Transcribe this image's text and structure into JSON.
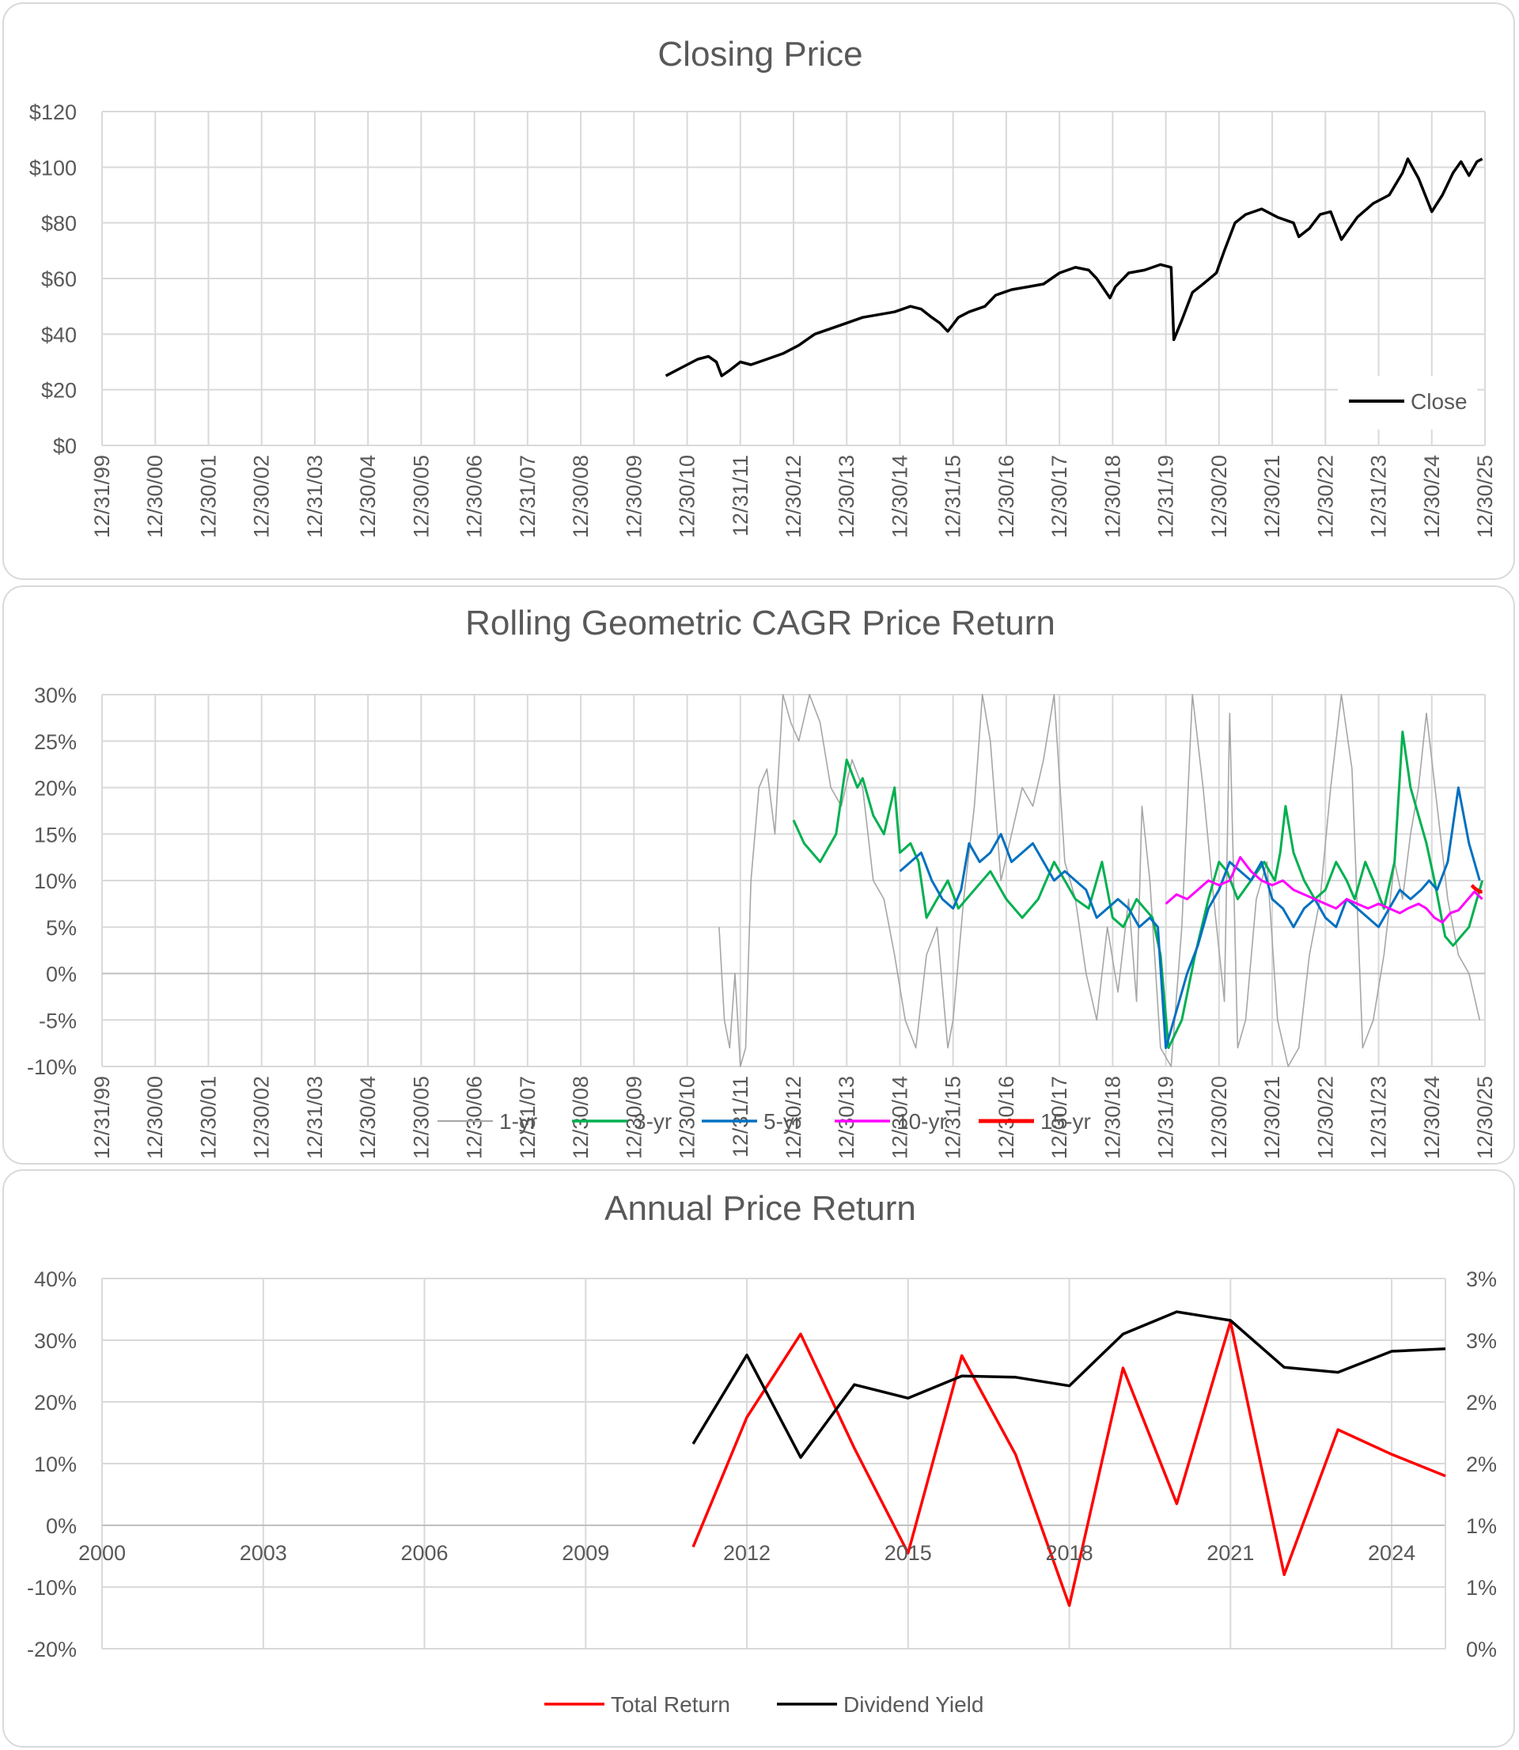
{
  "chart_data": [
    {
      "type": "line",
      "title": "Closing Price",
      "ylim": [
        0,
        120
      ],
      "y_ticks": [
        "$0",
        "$20",
        "$40",
        "$60",
        "$80",
        "$100",
        "$120"
      ],
      "x_ticks": [
        "12/31/99",
        "12/30/00",
        "12/30/01",
        "12/30/02",
        "12/31/03",
        "12/30/04",
        "12/30/05",
        "12/30/06",
        "12/31/07",
        "12/30/08",
        "12/30/09",
        "12/30/10",
        "12/31/11",
        "12/30/12",
        "12/30/13",
        "12/30/14",
        "12/31/15",
        "12/30/16",
        "12/30/17",
        "12/30/18",
        "12/31/19",
        "12/30/20",
        "12/30/21",
        "12/30/22",
        "12/31/23",
        "12/30/24",
        "12/30/25"
      ],
      "legend": "bottom-right",
      "series": [
        {
          "name": "Close",
          "color": "#000000",
          "x": [
            2010.6,
            2010.9,
            2011.2,
            2011.4,
            2011.55,
            2011.65,
            2011.8,
            2012.0,
            2012.2,
            2012.5,
            2012.8,
            2013.1,
            2013.4,
            2013.7,
            2014.0,
            2014.3,
            2014.6,
            2014.9,
            2015.2,
            2015.4,
            2015.6,
            2015.75,
            2015.9,
            2016.1,
            2016.3,
            2016.6,
            2016.8,
            2017.1,
            2017.4,
            2017.7,
            2018.0,
            2018.3,
            2018.55,
            2018.7,
            2018.95,
            2019.05,
            2019.3,
            2019.6,
            2019.9,
            2020.1,
            2020.15,
            2020.3,
            2020.5,
            2020.7,
            2020.95,
            2021.1,
            2021.3,
            2021.5,
            2021.8,
            2022.1,
            2022.4,
            2022.5,
            2022.7,
            2022.9,
            2023.1,
            2023.3,
            2023.6,
            2023.9,
            2024.2,
            2024.45,
            2024.55,
            2024.75,
            2025.0,
            2025.2,
            2025.4,
            2025.55,
            2025.7,
            2025.85,
            2025.95
          ],
          "y": [
            25,
            28,
            31,
            32,
            30,
            25,
            27,
            30,
            29,
            31,
            33,
            36,
            40,
            42,
            44,
            46,
            47,
            48,
            50,
            49,
            46,
            44,
            41,
            46,
            48,
            50,
            54,
            56,
            57,
            58,
            62,
            64,
            63,
            60,
            53,
            57,
            62,
            63,
            65,
            64,
            38,
            45,
            55,
            58,
            62,
            70,
            80,
            83,
            85,
            82,
            80,
            75,
            78,
            83,
            84,
            74,
            82,
            87,
            90,
            98,
            103,
            96,
            84,
            90,
            98,
            102,
            97,
            102,
            103
          ]
        }
      ]
    },
    {
      "type": "line",
      "title": "Rolling Geometric CAGR Price Return",
      "ylim": [
        -10,
        30
      ],
      "y_ticks": [
        "-10%",
        "-5%",
        "0%",
        "5%",
        "10%",
        "15%",
        "20%",
        "25%",
        "30%"
      ],
      "x_ticks": [
        "12/31/99",
        "12/30/00",
        "12/30/01",
        "12/30/02",
        "12/31/03",
        "12/30/04",
        "12/30/05",
        "12/30/06",
        "12/31/07",
        "12/30/08",
        "12/30/09",
        "12/30/10",
        "12/31/11",
        "12/30/12",
        "12/30/13",
        "12/30/14",
        "12/31/15",
        "12/30/16",
        "12/30/17",
        "12/30/18",
        "12/31/19",
        "12/30/20",
        "12/30/21",
        "12/30/22",
        "12/31/23",
        "12/30/24",
        "12/30/25"
      ],
      "legend": "bottom",
      "series": [
        {
          "name": "1-yr",
          "color": "#a6a6a6",
          "x": [
            2011.6,
            2011.7,
            2011.8,
            2011.9,
            2012.0,
            2012.1,
            2012.2,
            2012.35,
            2012.5,
            2012.65,
            2012.8,
            2012.95,
            2013.1,
            2013.3,
            2013.5,
            2013.7,
            2013.9,
            2014.1,
            2014.3,
            2014.5,
            2014.7,
            2014.9,
            2015.1,
            2015.3,
            2015.5,
            2015.7,
            2015.9,
            2016.0,
            2016.2,
            2016.4,
            2016.55,
            2016.7,
            2016.9,
            2017.1,
            2017.3,
            2017.5,
            2017.7,
            2017.9,
            2018.1,
            2018.3,
            2018.5,
            2018.7,
            2018.9,
            2019.1,
            2019.3,
            2019.45,
            2019.55,
            2019.7,
            2019.9,
            2020.1,
            2020.3,
            2020.5,
            2020.7,
            2020.9,
            2021.1,
            2021.2,
            2021.35,
            2021.5,
            2021.7,
            2021.9,
            2022.1,
            2022.3,
            2022.5,
            2022.7,
            2022.9,
            2023.1,
            2023.3,
            2023.5,
            2023.7,
            2023.9,
            2024.1,
            2024.3,
            2024.45,
            2024.6,
            2024.75,
            2024.9,
            2025.1,
            2025.3,
            2025.5,
            2025.7,
            2025.9
          ],
          "y": [
            5,
            -5,
            -8,
            0,
            -10,
            -8,
            10,
            20,
            22,
            15,
            30,
            27,
            25,
            30,
            27,
            20,
            18,
            23,
            20,
            10,
            8,
            2,
            -5,
            -8,
            2,
            5,
            -8,
            -5,
            8,
            18,
            30,
            25,
            10,
            15,
            20,
            18,
            23,
            30,
            12,
            8,
            0,
            -5,
            5,
            -2,
            8,
            -3,
            18,
            10,
            -8,
            -10,
            5,
            30,
            20,
            8,
            -3,
            28,
            -8,
            -5,
            8,
            12,
            -5,
            -10,
            -8,
            2,
            8,
            20,
            30,
            22,
            -8,
            -5,
            2,
            12,
            8,
            15,
            20,
            28,
            18,
            8,
            2,
            0,
            -5
          ]
        },
        {
          "name": "3-yr",
          "color": "#00b050",
          "x": [
            2013.0,
            2013.2,
            2013.5,
            2013.8,
            2014.0,
            2014.2,
            2014.3,
            2014.5,
            2014.7,
            2014.9,
            2015.0,
            2015.2,
            2015.35,
            2015.5,
            2015.7,
            2015.9,
            2016.1,
            2016.4,
            2016.7,
            2017.0,
            2017.3,
            2017.6,
            2017.9,
            2018.1,
            2018.3,
            2018.55,
            2018.8,
            2019.0,
            2019.2,
            2019.45,
            2019.6,
            2019.75,
            2019.9,
            2020.05,
            2020.3,
            2020.55,
            2020.8,
            2021.0,
            2021.15,
            2021.35,
            2021.6,
            2021.85,
            2022.05,
            2022.15,
            2022.25,
            2022.4,
            2022.6,
            2022.8,
            2023.0,
            2023.2,
            2023.4,
            2023.55,
            2023.75,
            2023.9,
            2024.1,
            2024.3,
            2024.45,
            2024.6,
            2024.75,
            2024.9,
            2025.05,
            2025.25,
            2025.4,
            2025.55,
            2025.7,
            2025.85,
            2025.95
          ],
          "y": [
            16.5,
            14,
            12,
            15,
            23,
            20,
            21,
            17,
            15,
            20,
            13,
            14,
            12,
            6,
            8,
            10,
            7,
            9,
            11,
            8,
            6,
            8,
            12,
            10,
            8,
            7,
            12,
            6,
            5,
            8,
            7,
            6,
            2,
            -8,
            -5,
            2,
            8,
            12,
            11,
            8,
            10,
            12,
            10,
            13,
            18,
            13,
            10,
            8,
            9,
            12,
            10,
            8,
            12,
            10,
            7,
            12,
            26,
            20,
            17,
            14,
            10,
            4,
            3,
            4,
            5,
            8,
            10
          ]
        },
        {
          "name": "5-yr",
          "color": "#0070c0",
          "x": [
            2015.0,
            2015.2,
            2015.4,
            2015.6,
            2015.8,
            2016.0,
            2016.15,
            2016.3,
            2016.5,
            2016.7,
            2016.9,
            2017.1,
            2017.3,
            2017.5,
            2017.7,
            2017.9,
            2018.1,
            2018.3,
            2018.5,
            2018.7,
            2018.9,
            2019.1,
            2019.3,
            2019.5,
            2019.7,
            2019.85,
            2020.0,
            2020.2,
            2020.4,
            2020.6,
            2020.8,
            2021.0,
            2021.2,
            2021.4,
            2021.6,
            2021.8,
            2022.0,
            2022.2,
            2022.4,
            2022.6,
            2022.8,
            2023.0,
            2023.2,
            2023.4,
            2023.6,
            2023.8,
            2024.0,
            2024.2,
            2024.4,
            2024.6,
            2024.8,
            2024.95,
            2025.1,
            2025.3,
            2025.5,
            2025.7,
            2025.9
          ],
          "y": [
            11,
            12,
            13,
            10,
            8,
            7,
            9,
            14,
            12,
            13,
            15,
            12,
            13,
            14,
            12,
            10,
            11,
            10,
            9,
            6,
            7,
            8,
            7,
            5,
            6,
            5,
            -8,
            -4,
            0,
            3,
            7,
            9,
            12,
            11,
            10,
            12,
            8,
            7,
            5,
            7,
            8,
            6,
            5,
            8,
            7,
            6,
            5,
            7,
            9,
            8,
            9,
            10,
            9,
            12,
            20,
            14,
            10
          ]
        },
        {
          "name": "10-yr",
          "color": "#ff00ff",
          "x": [
            2020.0,
            2020.2,
            2020.4,
            2020.6,
            2020.8,
            2021.0,
            2021.2,
            2021.4,
            2021.6,
            2021.8,
            2022.0,
            2022.2,
            2022.4,
            2022.6,
            2022.8,
            2023.0,
            2023.2,
            2023.4,
            2023.6,
            2023.8,
            2024.0,
            2024.2,
            2024.4,
            2024.55,
            2024.75,
            2024.9,
            2025.05,
            2025.2,
            2025.35,
            2025.5,
            2025.65,
            2025.8,
            2025.95
          ],
          "y": [
            7.5,
            8.5,
            8,
            9,
            10,
            9.5,
            10,
            12.5,
            11,
            10,
            9.5,
            10,
            9,
            8.5,
            8,
            7.5,
            7,
            8,
            7.5,
            7,
            7.5,
            7,
            6.5,
            7,
            7.5,
            7,
            6,
            5.5,
            6.5,
            6.8,
            7.8,
            8.8,
            8
          ]
        },
        {
          "name": "15-yr",
          "color": "#ff0000",
          "x": [
            2025.75,
            2025.8,
            2025.85,
            2025.9,
            2025.95
          ],
          "y": [
            9.5,
            9.2,
            9,
            8.8,
            8.8
          ]
        }
      ]
    },
    {
      "type": "line",
      "title": "Annual Price Return",
      "xlim": [
        2000,
        2025
      ],
      "ylim": [
        -20,
        40
      ],
      "y2lim": [
        0,
        3
      ],
      "y_ticks": [
        "-20%",
        "-10%",
        "0%",
        "10%",
        "20%",
        "30%",
        "40%"
      ],
      "y2_ticks": [
        "0%",
        "1%",
        "1%",
        "2%",
        "2%",
        "3%",
        "3%"
      ],
      "x_ticks": [
        "2000",
        "2003",
        "2006",
        "2009",
        "2012",
        "2015",
        "2018",
        "2021",
        "2024"
      ],
      "legend": "bottom",
      "series": [
        {
          "name": "Total Return",
          "color": "#ff0000",
          "axis": "left",
          "x": [
            2011,
            2012,
            2013,
            2014,
            2015,
            2016,
            2017,
            2018,
            2019,
            2020,
            2021,
            2022,
            2023,
            2024,
            2025
          ],
          "y": [
            -3.5,
            17.5,
            31,
            12.5,
            -4.5,
            27.5,
            11.5,
            -13,
            25.5,
            3.5,
            33,
            -8,
            15.5,
            11.5,
            8
          ]
        },
        {
          "name": "Dividend Yield",
          "color": "#000000",
          "axis": "right",
          "x": [
            2011,
            2012,
            2013,
            2014,
            2015,
            2016,
            2017,
            2018,
            2019,
            2020,
            2021,
            2022,
            2023,
            2024,
            2025
          ],
          "y": [
            1.66,
            2.38,
            1.55,
            2.14,
            2.03,
            2.21,
            2.2,
            2.13,
            2.55,
            2.73,
            2.66,
            2.28,
            2.24,
            2.41,
            2.43
          ]
        }
      ]
    }
  ]
}
